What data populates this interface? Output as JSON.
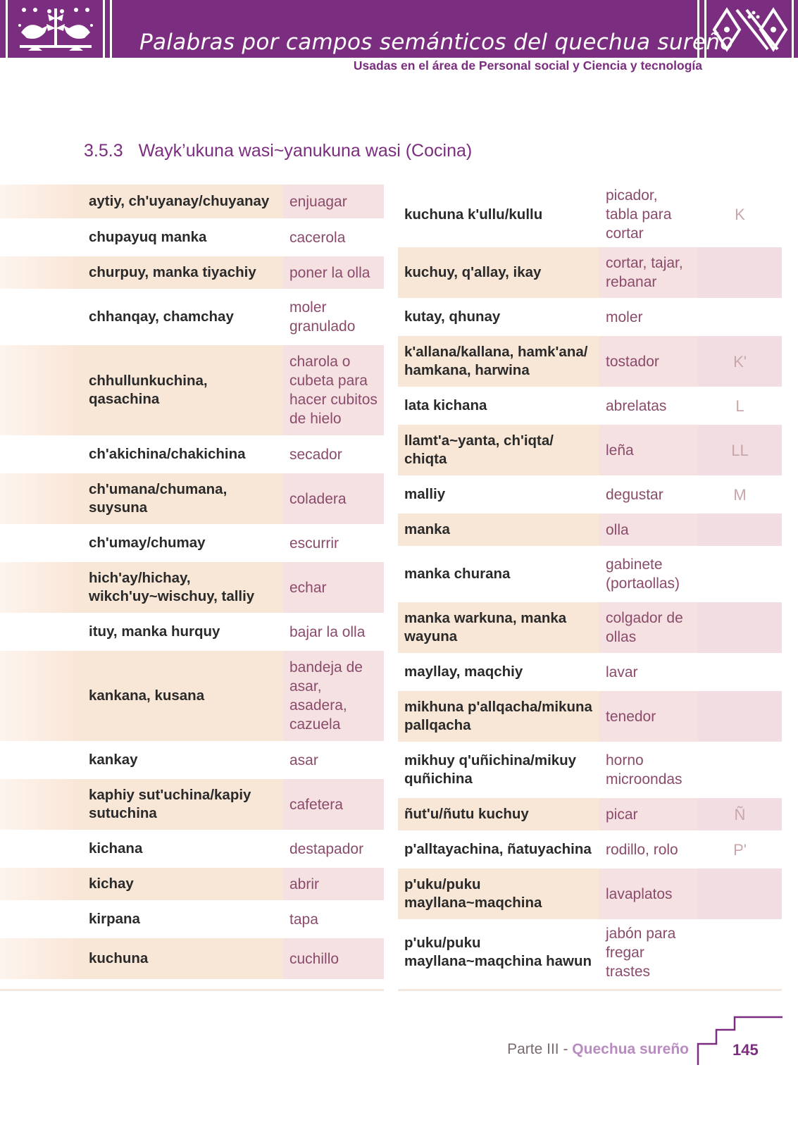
{
  "header": {
    "title": "Palabras por campos semánticos del quechua sureño",
    "subtitle": "Usadas en el área de Personal social y Ciencia y tecnología"
  },
  "section": {
    "number": "3.5.3",
    "title": "Wayk’ukuna wasi~yanukuna wasi (Cocina)"
  },
  "left_rows": [
    {
      "q": "aytiy, ch'uyanay/chuyanay",
      "s": "enjuagar"
    },
    {
      "q": "chupayuq manka",
      "s": "cacerola"
    },
    {
      "q": "churpuy, manka tiyachiy",
      "s": "poner la olla"
    },
    {
      "q": "chhanqay, chamchay",
      "s": "moler granulado"
    },
    {
      "q": "chhullunkuchina, qasachina",
      "s": "charola o cubeta para hacer cubitos de hielo"
    },
    {
      "q": "ch'akichina/chakichina",
      "s": "secador"
    },
    {
      "q": "ch'umana/chumana, suysuna",
      "s": "coladera"
    },
    {
      "q": "ch'umay/chumay",
      "s": "escurrir"
    },
    {
      "q": "hich'ay/hichay, wikch'uy~wischuy, talliy",
      "s": "echar"
    },
    {
      "q": "ituy, manka hurquy",
      "s": "bajar la olla"
    },
    {
      "q": "kankana, kusana",
      "s": "bandeja de asar, asadera, cazuela"
    },
    {
      "q": "kankay",
      "s": "asar"
    },
    {
      "q": "kaphiy sut'uchina/kapiy sutuchina",
      "s": "cafetera"
    },
    {
      "q": "kichana",
      "s": "destapador"
    },
    {
      "q": "kichay",
      "s": "abrir"
    },
    {
      "q": "kirpana",
      "s": "tapa"
    },
    {
      "q": "kuchuna",
      "s": "cuchillo"
    }
  ],
  "right_rows": [
    {
      "q": "kuchuna k'ullu/kullu",
      "s": "picador, tabla para cortar",
      "l": "K"
    },
    {
      "q": "kuchuy, q'allay, ikay",
      "s": "cortar, tajar, rebanar",
      "l": ""
    },
    {
      "q": "kutay, qhunay",
      "s": "moler",
      "l": ""
    },
    {
      "q": "k'allana/kallana, hamk'ana/ hamkana, harwina",
      "s": "tostador",
      "l": "K'"
    },
    {
      "q": "lata kichana",
      "s": "abrelatas",
      "l": "L"
    },
    {
      "q": "llamt'a~yanta, ch'iqta/ chiqta",
      "s": "leña",
      "l": "LL"
    },
    {
      "q": "malliy",
      "s": "degustar",
      "l": "M"
    },
    {
      "q": "manka",
      "s": "olla",
      "l": ""
    },
    {
      "q": "manka churana",
      "s": "gabinete (portaollas)",
      "l": ""
    },
    {
      "q": "manka warkuna, manka wayuna",
      "s": "colgador de ollas",
      "l": ""
    },
    {
      "q": "mayllay, maqchiy",
      "s": "lavar",
      "l": ""
    },
    {
      "q": "mikhuna p'allqacha/mikuna pallqacha",
      "s": "tenedor",
      "l": ""
    },
    {
      "q": "mikhuy q'uñichina/mikuy quñichina",
      "s": "horno microondas",
      "l": ""
    },
    {
      "q": "ñut'u/ñutu kuchuy",
      "s": "picar",
      "l": "Ñ"
    },
    {
      "q": "p'alltayachina, ñatuyachina",
      "s": "rodillo, rolo",
      "l": "P'"
    },
    {
      "q": "p'uku/puku mayllana~maqchina",
      "s": "lavaplatos",
      "l": ""
    },
    {
      "q": "p'uku/puku mayllana~maqchina hawun",
      "s": "jabón para fregar trastes",
      "l": ""
    }
  ],
  "footer": {
    "part": "Parte III - ",
    "part_name": "Quechua sureño",
    "page": "145"
  },
  "colors": {
    "brand_purple": "#7b2d7f",
    "row_shade_quechua": "#f8e6d6",
    "row_shade_spanish": "#f6e1e2"
  }
}
